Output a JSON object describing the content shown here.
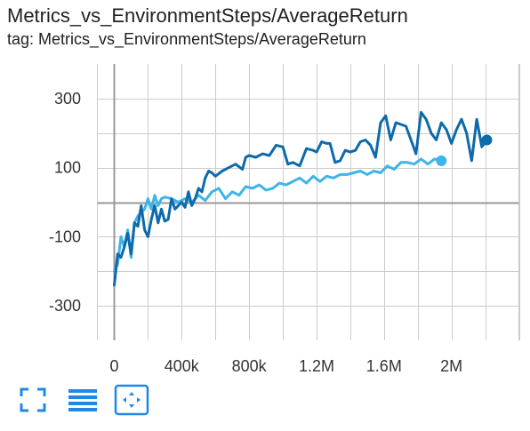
{
  "header": {
    "title": "Metrics_vs_EnvironmentSteps/AverageReturn",
    "tag": "tag: Metrics_vs_EnvironmentSteps/AverageReturn"
  },
  "toolbar": {
    "fullscreen_icon": "fullscreen-icon",
    "data_table_icon": "data-table-icon",
    "fit_domain_icon": "fit-domain-icon"
  },
  "colors": {
    "series_dark": "#0d6aab",
    "series_light": "#3fb4e8",
    "grid": "#cccccc",
    "axis": "#999999",
    "icon": "#1e88e5"
  },
  "chart_data": {
    "type": "line",
    "title": "Metrics_vs_EnvironmentSteps/AverageReturn",
    "xlabel": "",
    "ylabel": "",
    "xlim": [
      -100000,
      2400000
    ],
    "ylim": [
      -400,
      400
    ],
    "x_ticks": [
      0,
      400000,
      800000,
      1200000,
      1600000,
      2000000
    ],
    "x_tick_labels": [
      "0",
      "400k",
      "800k",
      "1.2M",
      "1.6M",
      "2M"
    ],
    "y_ticks": [
      300,
      100,
      -100,
      -300
    ],
    "y_tick_labels": [
      "300",
      "100",
      "-100",
      "-300"
    ],
    "grid": true,
    "legend": "none",
    "series": [
      {
        "color": "#0d6aab",
        "x": [
          0,
          20000,
          40000,
          60000,
          80000,
          100000,
          120000,
          140000,
          160000,
          180000,
          200000,
          220000,
          240000,
          260000,
          280000,
          300000,
          320000,
          340000,
          360000,
          380000,
          400000,
          420000,
          440000,
          460000,
          480000,
          500000,
          520000,
          540000,
          560000,
          580000,
          600000,
          640000,
          680000,
          720000,
          760000,
          780000,
          800000,
          840000,
          880000,
          920000,
          960000,
          1000000,
          1030000,
          1060000,
          1100000,
          1140000,
          1180000,
          1200000,
          1230000,
          1260000,
          1280000,
          1310000,
          1340000,
          1370000,
          1400000,
          1430000,
          1460000,
          1490000,
          1520000,
          1550000,
          1580000,
          1610000,
          1640000,
          1670000,
          1700000,
          1730000,
          1760000,
          1790000,
          1820000,
          1850000,
          1880000,
          1910000,
          1940000,
          1970000,
          2000000,
          2030000,
          2060000,
          2090000,
          2120000,
          2150000,
          2180000,
          2210000
        ],
        "y": [
          -240,
          -150,
          -160,
          -130,
          -90,
          -150,
          -60,
          -70,
          -10,
          -80,
          -100,
          -50,
          -10,
          -60,
          -20,
          -55,
          -50,
          10,
          -20,
          -10,
          0,
          -15,
          30,
          -10,
          10,
          40,
          30,
          70,
          90,
          85,
          75,
          90,
          100,
          110,
          95,
          130,
          135,
          130,
          140,
          135,
          165,
          160,
          110,
          115,
          105,
          155,
          150,
          145,
          175,
          170,
          170,
          115,
          120,
          150,
          145,
          150,
          175,
          180,
          165,
          130,
          230,
          250,
          180,
          230,
          225,
          220,
          180,
          140,
          260,
          240,
          200,
          180,
          230,
          210,
          170,
          210,
          240,
          200,
          120,
          240,
          160,
          180
        ]
      },
      {
        "color": "#3fb4e8",
        "x": [
          0,
          20000,
          40000,
          60000,
          80000,
          100000,
          120000,
          140000,
          160000,
          180000,
          200000,
          220000,
          240000,
          260000,
          280000,
          300000,
          340000,
          380000,
          420000,
          460000,
          500000,
          540000,
          580000,
          620000,
          660000,
          700000,
          740000,
          780000,
          820000,
          860000,
          900000,
          940000,
          980000,
          1020000,
          1060000,
          1100000,
          1140000,
          1180000,
          1220000,
          1260000,
          1300000,
          1340000,
          1380000,
          1420000,
          1460000,
          1500000,
          1540000,
          1580000,
          1620000,
          1660000,
          1700000,
          1740000,
          1780000,
          1820000,
          1860000,
          1900000,
          1940000
        ],
        "y": [
          -200,
          -180,
          -100,
          -130,
          -80,
          -160,
          -60,
          -40,
          -30,
          -20,
          10,
          -20,
          20,
          -10,
          10,
          15,
          10,
          0,
          10,
          0,
          20,
          5,
          30,
          40,
          10,
          30,
          20,
          45,
          40,
          50,
          35,
          40,
          55,
          50,
          60,
          70,
          55,
          75,
          60,
          75,
          70,
          80,
          80,
          85,
          90,
          80,
          90,
          85,
          105,
          95,
          115,
          115,
          110,
          125,
          110,
          125,
          120
        ]
      }
    ]
  }
}
